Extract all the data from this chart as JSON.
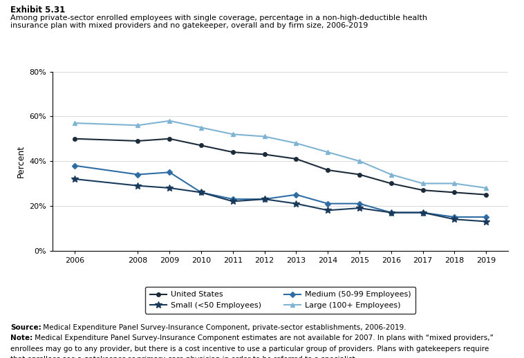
{
  "exhibit_label": "Exhibit 5.31",
  "title_line1": "Among private-sector enrolled employees with single coverage, percentage in a non-high-deductible health",
  "title_line2": "insurance plan with mixed providers and no gatekeeper, overall and by firm size, 2006-2019",
  "ylabel": "Percent",
  "years": [
    2006,
    2008,
    2009,
    2010,
    2011,
    2012,
    2013,
    2014,
    2015,
    2016,
    2017,
    2018,
    2019
  ],
  "united_states": [
    50,
    49,
    50,
    47,
    44,
    43,
    41,
    36,
    34,
    30,
    27,
    26,
    25
  ],
  "small": [
    32,
    29,
    28,
    26,
    22,
    23,
    21,
    18,
    19,
    17,
    17,
    14,
    13
  ],
  "medium": [
    38,
    34,
    35,
    26,
    23,
    23,
    25,
    21,
    21,
    17,
    17,
    15,
    15
  ],
  "large": [
    57,
    56,
    58,
    55,
    52,
    51,
    48,
    44,
    40,
    34,
    30,
    30,
    28
  ],
  "color_us": "#1c2b3a",
  "color_small": "#1a3a5c",
  "color_medium": "#2e6da4",
  "color_large": "#7fb3d3",
  "ylim": [
    0,
    80
  ],
  "yticks": [
    0,
    20,
    40,
    60,
    80
  ],
  "source_bold": "Source:",
  "source_rest": " Medical Expenditure Panel Survey-Insurance Component, private-sector establishments, 2006-2019.",
  "note_bold": "Note:",
  "note_rest": " Medical Expenditure Panel Survey-Insurance Component estimates are not available for 2007. In plans with “mixed providers,” enrollees may go to any provider, but there is a cost incentive to use a particular group of providers. Plans with gatekeepers require that enrollees see a gatekeeper or primary-care physician in order to be referred to a specialist.",
  "legend_labels": [
    "United States",
    "Small (<50 Employees)",
    "Medium (50-99 Employees)",
    "Large (100+ Employees)"
  ]
}
